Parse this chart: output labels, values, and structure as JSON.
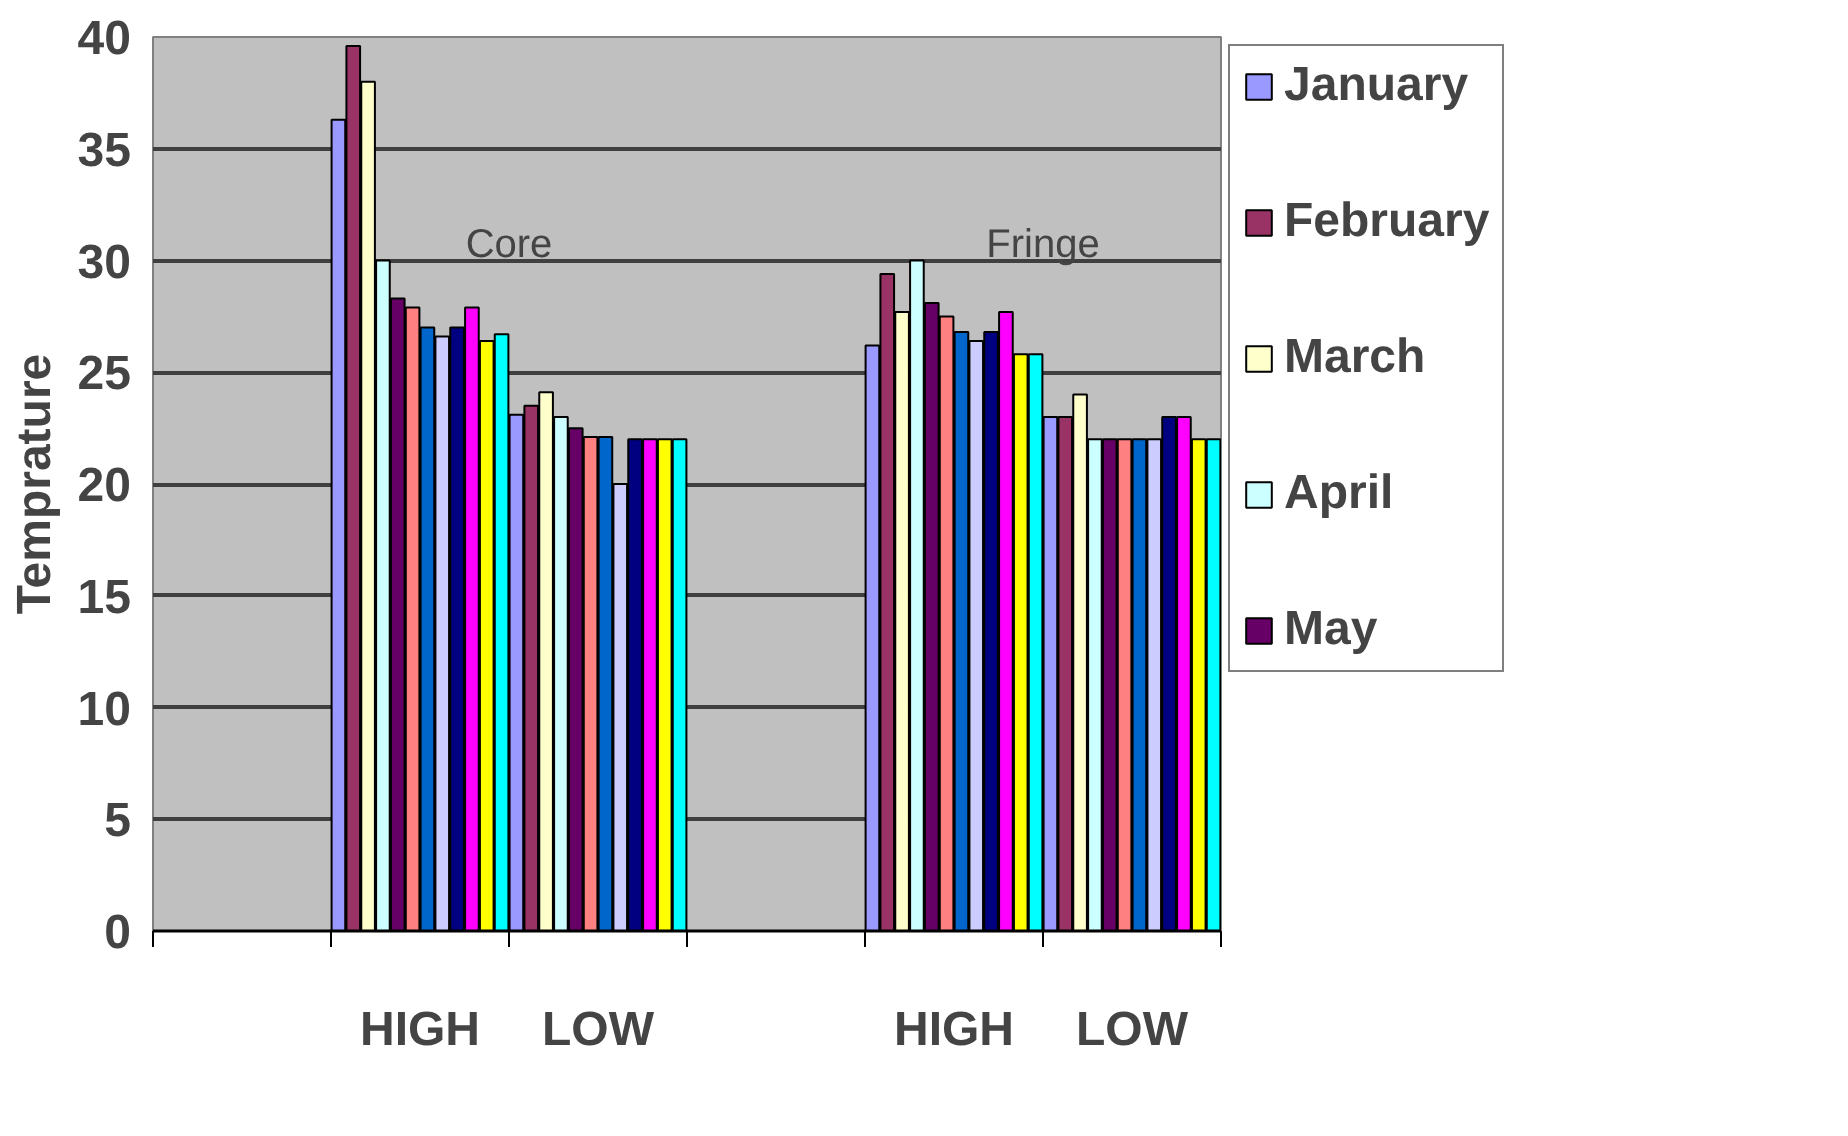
{
  "chart_data": {
    "type": "bar",
    "ylabel": "Temprature",
    "categories": [
      null,
      "HIGH",
      "LOW",
      null,
      "HIGH",
      "LOW"
    ],
    "ylim": [
      0,
      40
    ],
    "yticks": [
      0,
      5,
      10,
      15,
      20,
      25,
      30,
      35,
      40
    ],
    "grid": "y",
    "legend": "right",
    "annotations": [
      "Core",
      "Fringe"
    ],
    "series": [
      {
        "name": "January",
        "color": "#9999ff",
        "values": [
          null,
          36.3,
          23.1,
          null,
          26.2,
          23
        ]
      },
      {
        "name": "February",
        "color": "#993366",
        "values": [
          null,
          39.6,
          23.5,
          null,
          29.4,
          23
        ]
      },
      {
        "name": "March",
        "color": "#ffffcc",
        "values": [
          null,
          38,
          24.1,
          null,
          27.7,
          24
        ]
      },
      {
        "name": "April",
        "color": "#ccffff",
        "values": [
          null,
          30,
          23,
          null,
          30,
          22
        ]
      },
      {
        "name": "May",
        "color": "#660066",
        "values": [
          null,
          28.3,
          22.5,
          null,
          28.1,
          22
        ]
      },
      {
        "color": "#ff8080",
        "values": [
          null,
          27.9,
          22.1,
          null,
          27.5,
          22
        ]
      },
      {
        "color": "#0066cc",
        "values": [
          null,
          27,
          22.1,
          null,
          26.8,
          22
        ]
      },
      {
        "color": "#ccccff",
        "values": [
          null,
          26.6,
          20,
          null,
          26.4,
          22
        ]
      },
      {
        "color": "#000080",
        "values": [
          null,
          27,
          22,
          null,
          26.8,
          23
        ]
      },
      {
        "color": "#ff00ff",
        "values": [
          null,
          27.9,
          22,
          null,
          27.7,
          23
        ]
      },
      {
        "color": "#ffff00",
        "values": [
          null,
          26.4,
          22,
          null,
          25.8,
          22
        ]
      },
      {
        "color": "#00ffff",
        "values": [
          null,
          26.7,
          22,
          null,
          25.8,
          22
        ]
      }
    ]
  }
}
